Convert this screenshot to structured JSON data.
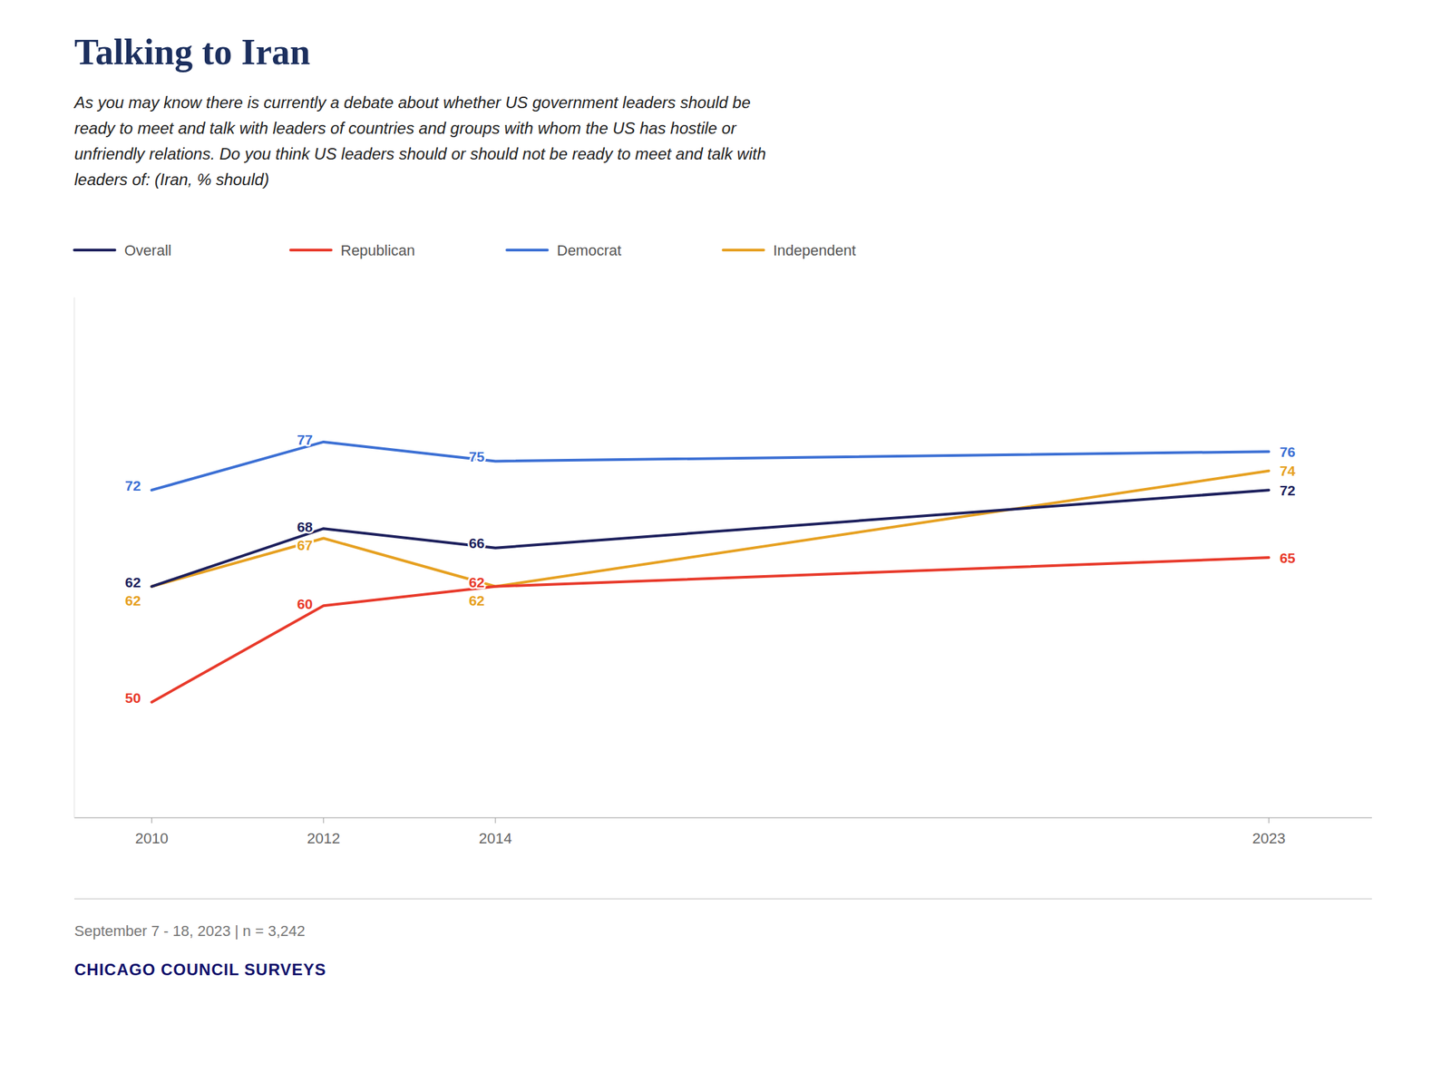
{
  "chart_data": {
    "type": "line",
    "title": "Talking to Iran",
    "subtitle": [
      "As you may know there is currently a debate about whether US government leaders should be",
      "ready to meet and talk with leaders of countries and groups with whom the US has hostile or",
      "unfriendly relations.  Do you think US leaders should or should not be ready to meet and talk with",
      "leaders of: (Iran, % should)"
    ],
    "x": [
      2010,
      2012,
      2014,
      2023
    ],
    "series": [
      {
        "name": "Overall",
        "color": "#1c1f5c",
        "values": [
          62,
          68,
          66,
          72
        ]
      },
      {
        "name": "Republican",
        "color": "#e8392a",
        "values": [
          50,
          60,
          62,
          65
        ]
      },
      {
        "name": "Democrat",
        "color": "#3b6fd4",
        "values": [
          72,
          77,
          75,
          76
        ]
      },
      {
        "name": "Independent",
        "color": "#e6a020",
        "values": [
          62,
          67,
          62,
          74
        ]
      }
    ],
    "xlim": [
      2009.1,
      2024.2
    ],
    "xticks": [
      2010,
      2012,
      2014,
      2023
    ],
    "ylim": [
      38,
      92
    ],
    "grid": false,
    "legend": "top",
    "data_labels": true,
    "tick_labels": "x",
    "annotations": [
      "September 7 - 18, 2023 | n = 3,242",
      "CHICAGO COUNCIL SURVEYS"
    ]
  }
}
